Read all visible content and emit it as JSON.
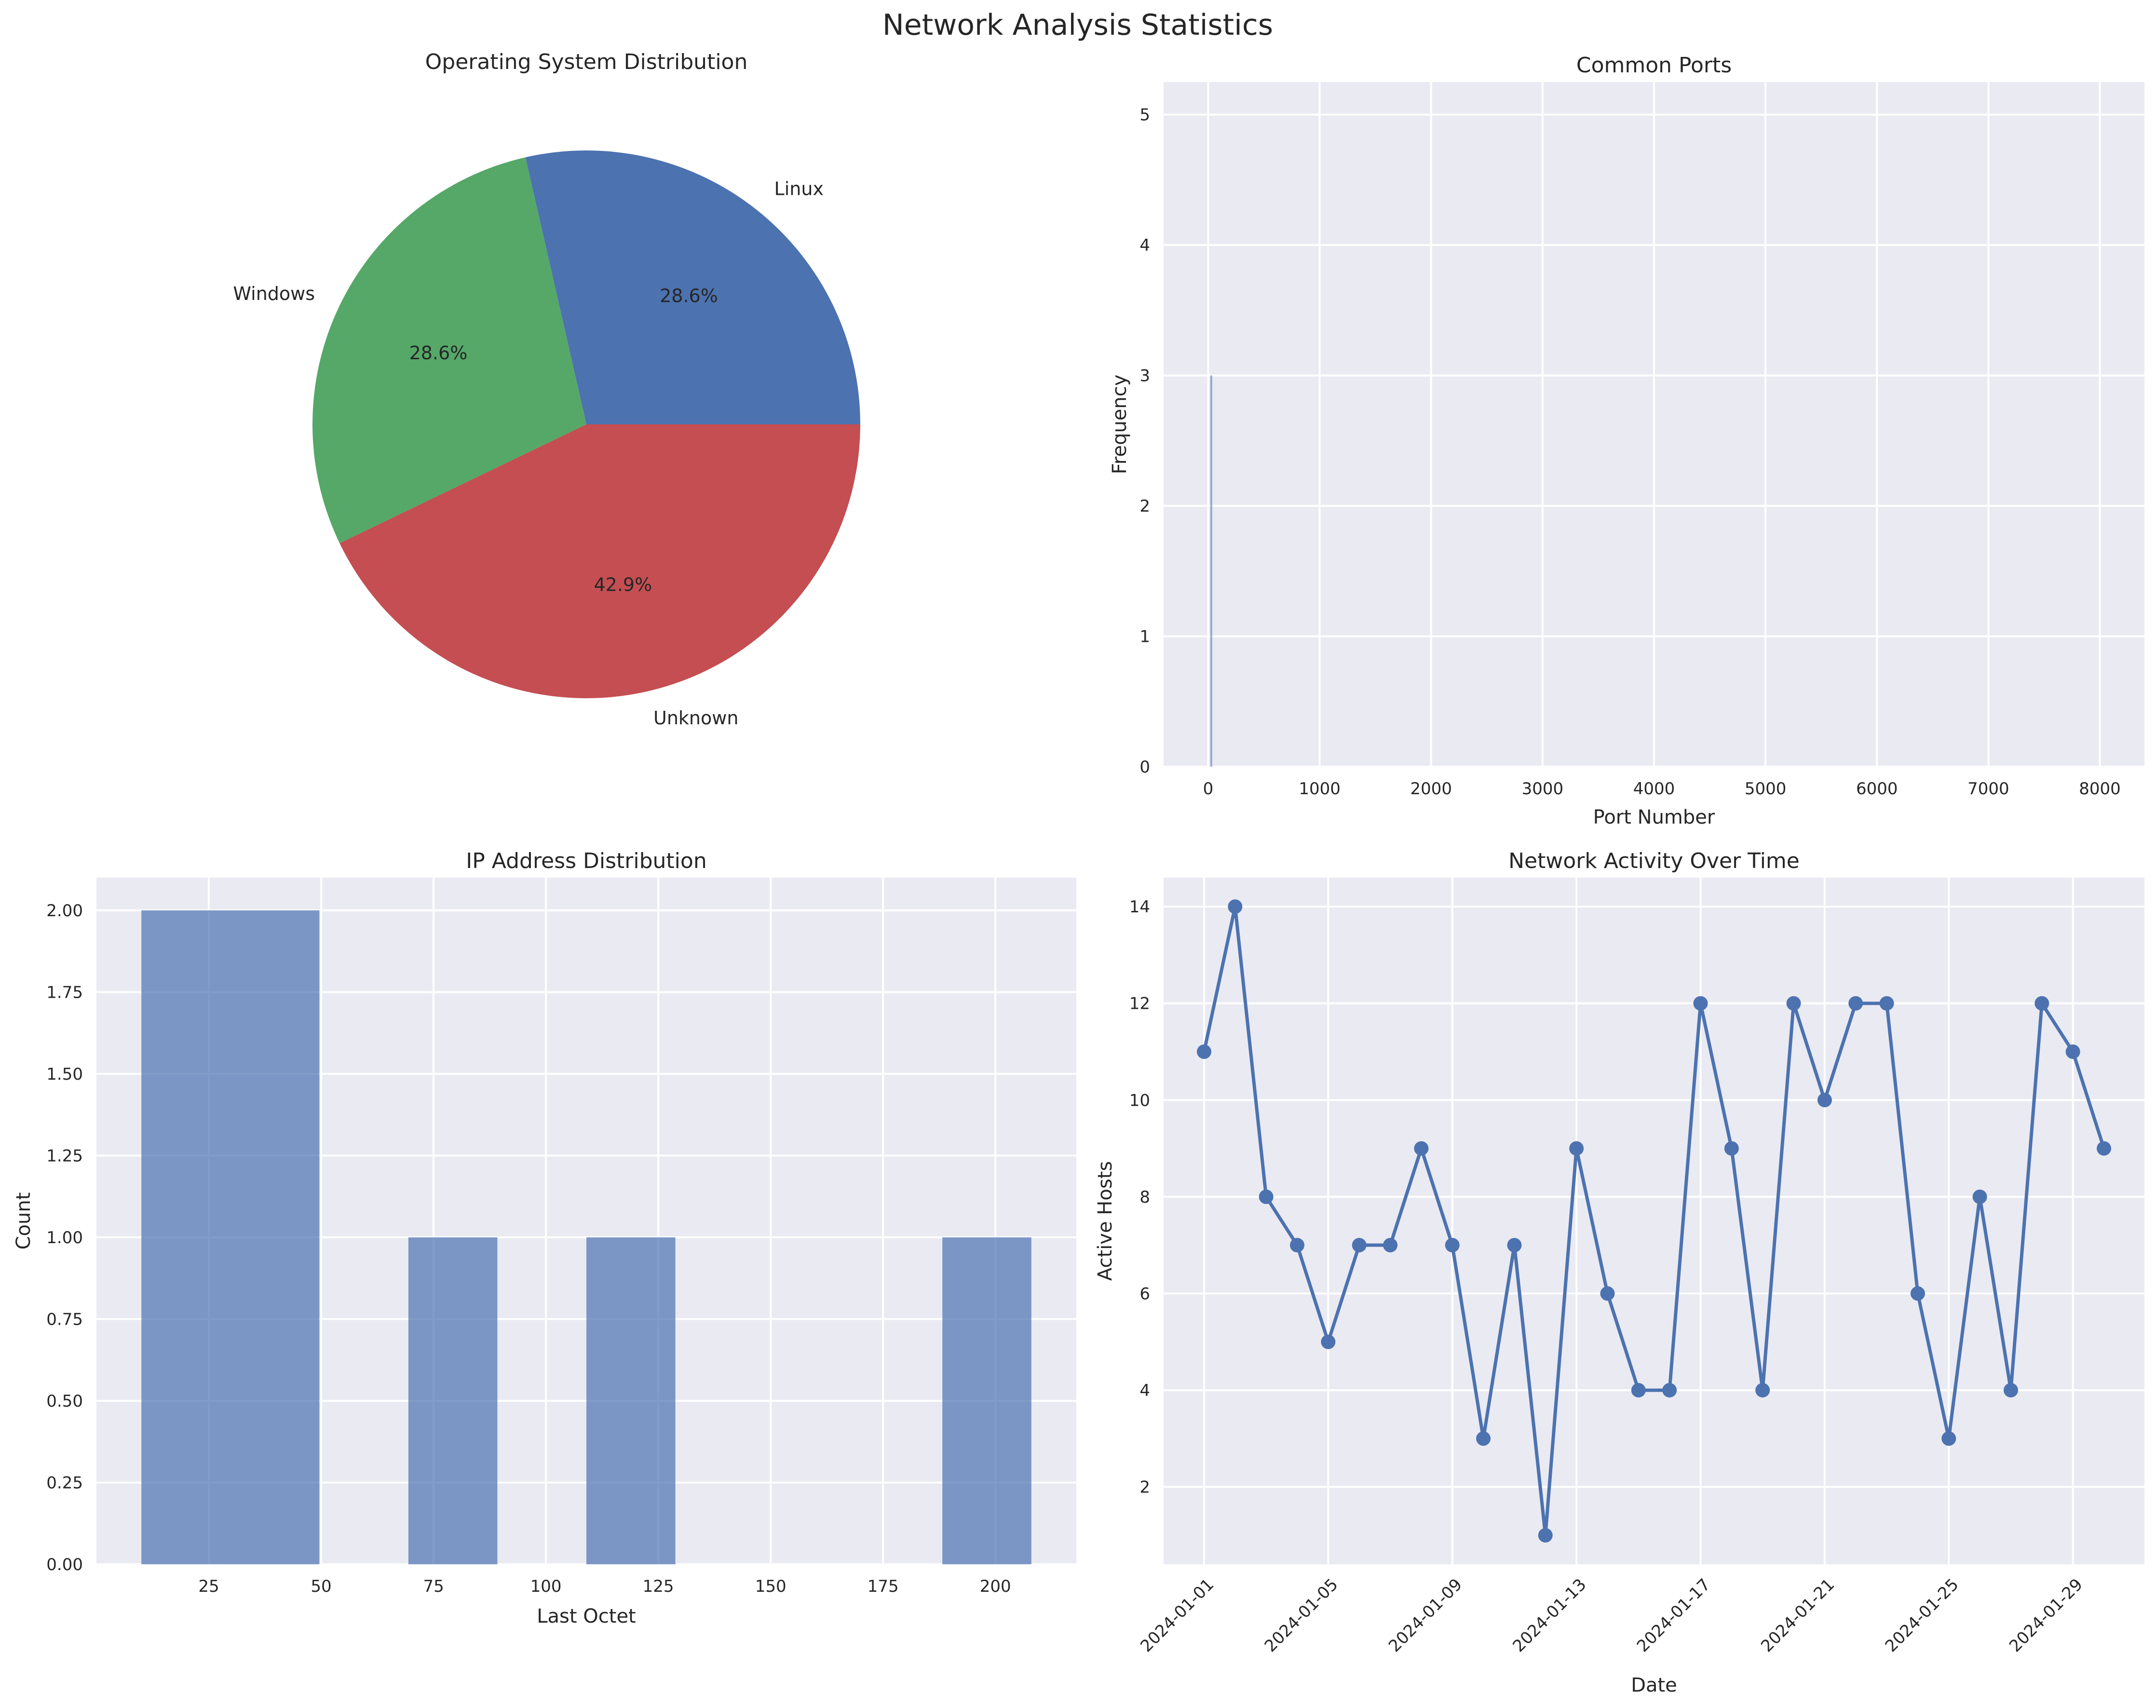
{
  "figure": {
    "suptitle": "Network Analysis Statistics"
  },
  "chart_data": [
    {
      "type": "pie",
      "title": "Operating System Distribution",
      "slices": [
        {
          "label": "Linux",
          "value": 28.6,
          "pct_label": "28.6%",
          "color": "#4C72B0"
        },
        {
          "label": "Windows",
          "value": 28.6,
          "pct_label": "28.6%",
          "color": "#55A868"
        },
        {
          "label": "Unknown",
          "value": 42.9,
          "pct_label": "42.9%",
          "color": "#C44E52"
        }
      ]
    },
    {
      "type": "bar",
      "title": "Common Ports",
      "xlabel": "Port Number",
      "ylabel": "Frequency",
      "xlim": [
        -400,
        8400
      ],
      "ylim": [
        0,
        5.25
      ],
      "xticks": [
        0,
        1000,
        2000,
        3000,
        4000,
        5000,
        6000,
        7000,
        8000
      ],
      "yticks": [
        0,
        1,
        2,
        3,
        4,
        5
      ],
      "bars": [
        {
          "x": 22,
          "width": 6,
          "value": 3
        }
      ],
      "color": "#4C72B0",
      "grid": true
    },
    {
      "type": "bar",
      "title": "IP Address Distribution",
      "xlabel": "Last Octet",
      "ylabel": "Count",
      "xlim": [
        0,
        218
      ],
      "ylim": [
        0,
        2.1
      ],
      "xticks": [
        25,
        50,
        75,
        100,
        125,
        150,
        175,
        200
      ],
      "yticks": [
        "0.00",
        "0.25",
        "0.50",
        "0.75",
        "1.00",
        "1.25",
        "1.50",
        "1.75",
        "2.00"
      ],
      "bins": [
        {
          "start": 10,
          "end": 49.6,
          "value": 2
        },
        {
          "start": 69.4,
          "end": 89.2,
          "value": 1
        },
        {
          "start": 109,
          "end": 128.8,
          "value": 1
        },
        {
          "start": 188.2,
          "end": 208,
          "value": 1
        }
      ],
      "color": "#4C72B0",
      "opacity": 0.7,
      "grid": true
    },
    {
      "type": "line",
      "title": "Network Activity Over Time",
      "xlabel": "Date",
      "ylabel": "Active Hosts",
      "ylim": [
        0.4,
        14.6
      ],
      "yticks": [
        2,
        4,
        6,
        8,
        10,
        12,
        14
      ],
      "xticks": [
        "2024-01-01",
        "2024-01-05",
        "2024-01-09",
        "2024-01-13",
        "2024-01-17",
        "2024-01-21",
        "2024-01-25",
        "2024-01-29"
      ],
      "x": [
        "2024-01-01",
        "2024-01-02",
        "2024-01-03",
        "2024-01-04",
        "2024-01-05",
        "2024-01-06",
        "2024-01-07",
        "2024-01-08",
        "2024-01-09",
        "2024-01-10",
        "2024-01-11",
        "2024-01-12",
        "2024-01-13",
        "2024-01-14",
        "2024-01-15",
        "2024-01-16",
        "2024-01-17",
        "2024-01-18",
        "2024-01-19",
        "2024-01-20",
        "2024-01-21",
        "2024-01-22",
        "2024-01-23",
        "2024-01-24",
        "2024-01-25",
        "2024-01-26",
        "2024-01-27",
        "2024-01-28",
        "2024-01-29",
        "2024-01-30"
      ],
      "series": [
        {
          "values": [
            11,
            14,
            8,
            7,
            5,
            7,
            7,
            9,
            7,
            3,
            7,
            1,
            9,
            6,
            4,
            4,
            12,
            9,
            4,
            12,
            10,
            12,
            12,
            6,
            3,
            8,
            4,
            12,
            11,
            9
          ]
        }
      ],
      "color": "#4C72B0",
      "marker": "circle",
      "grid": true
    }
  ]
}
